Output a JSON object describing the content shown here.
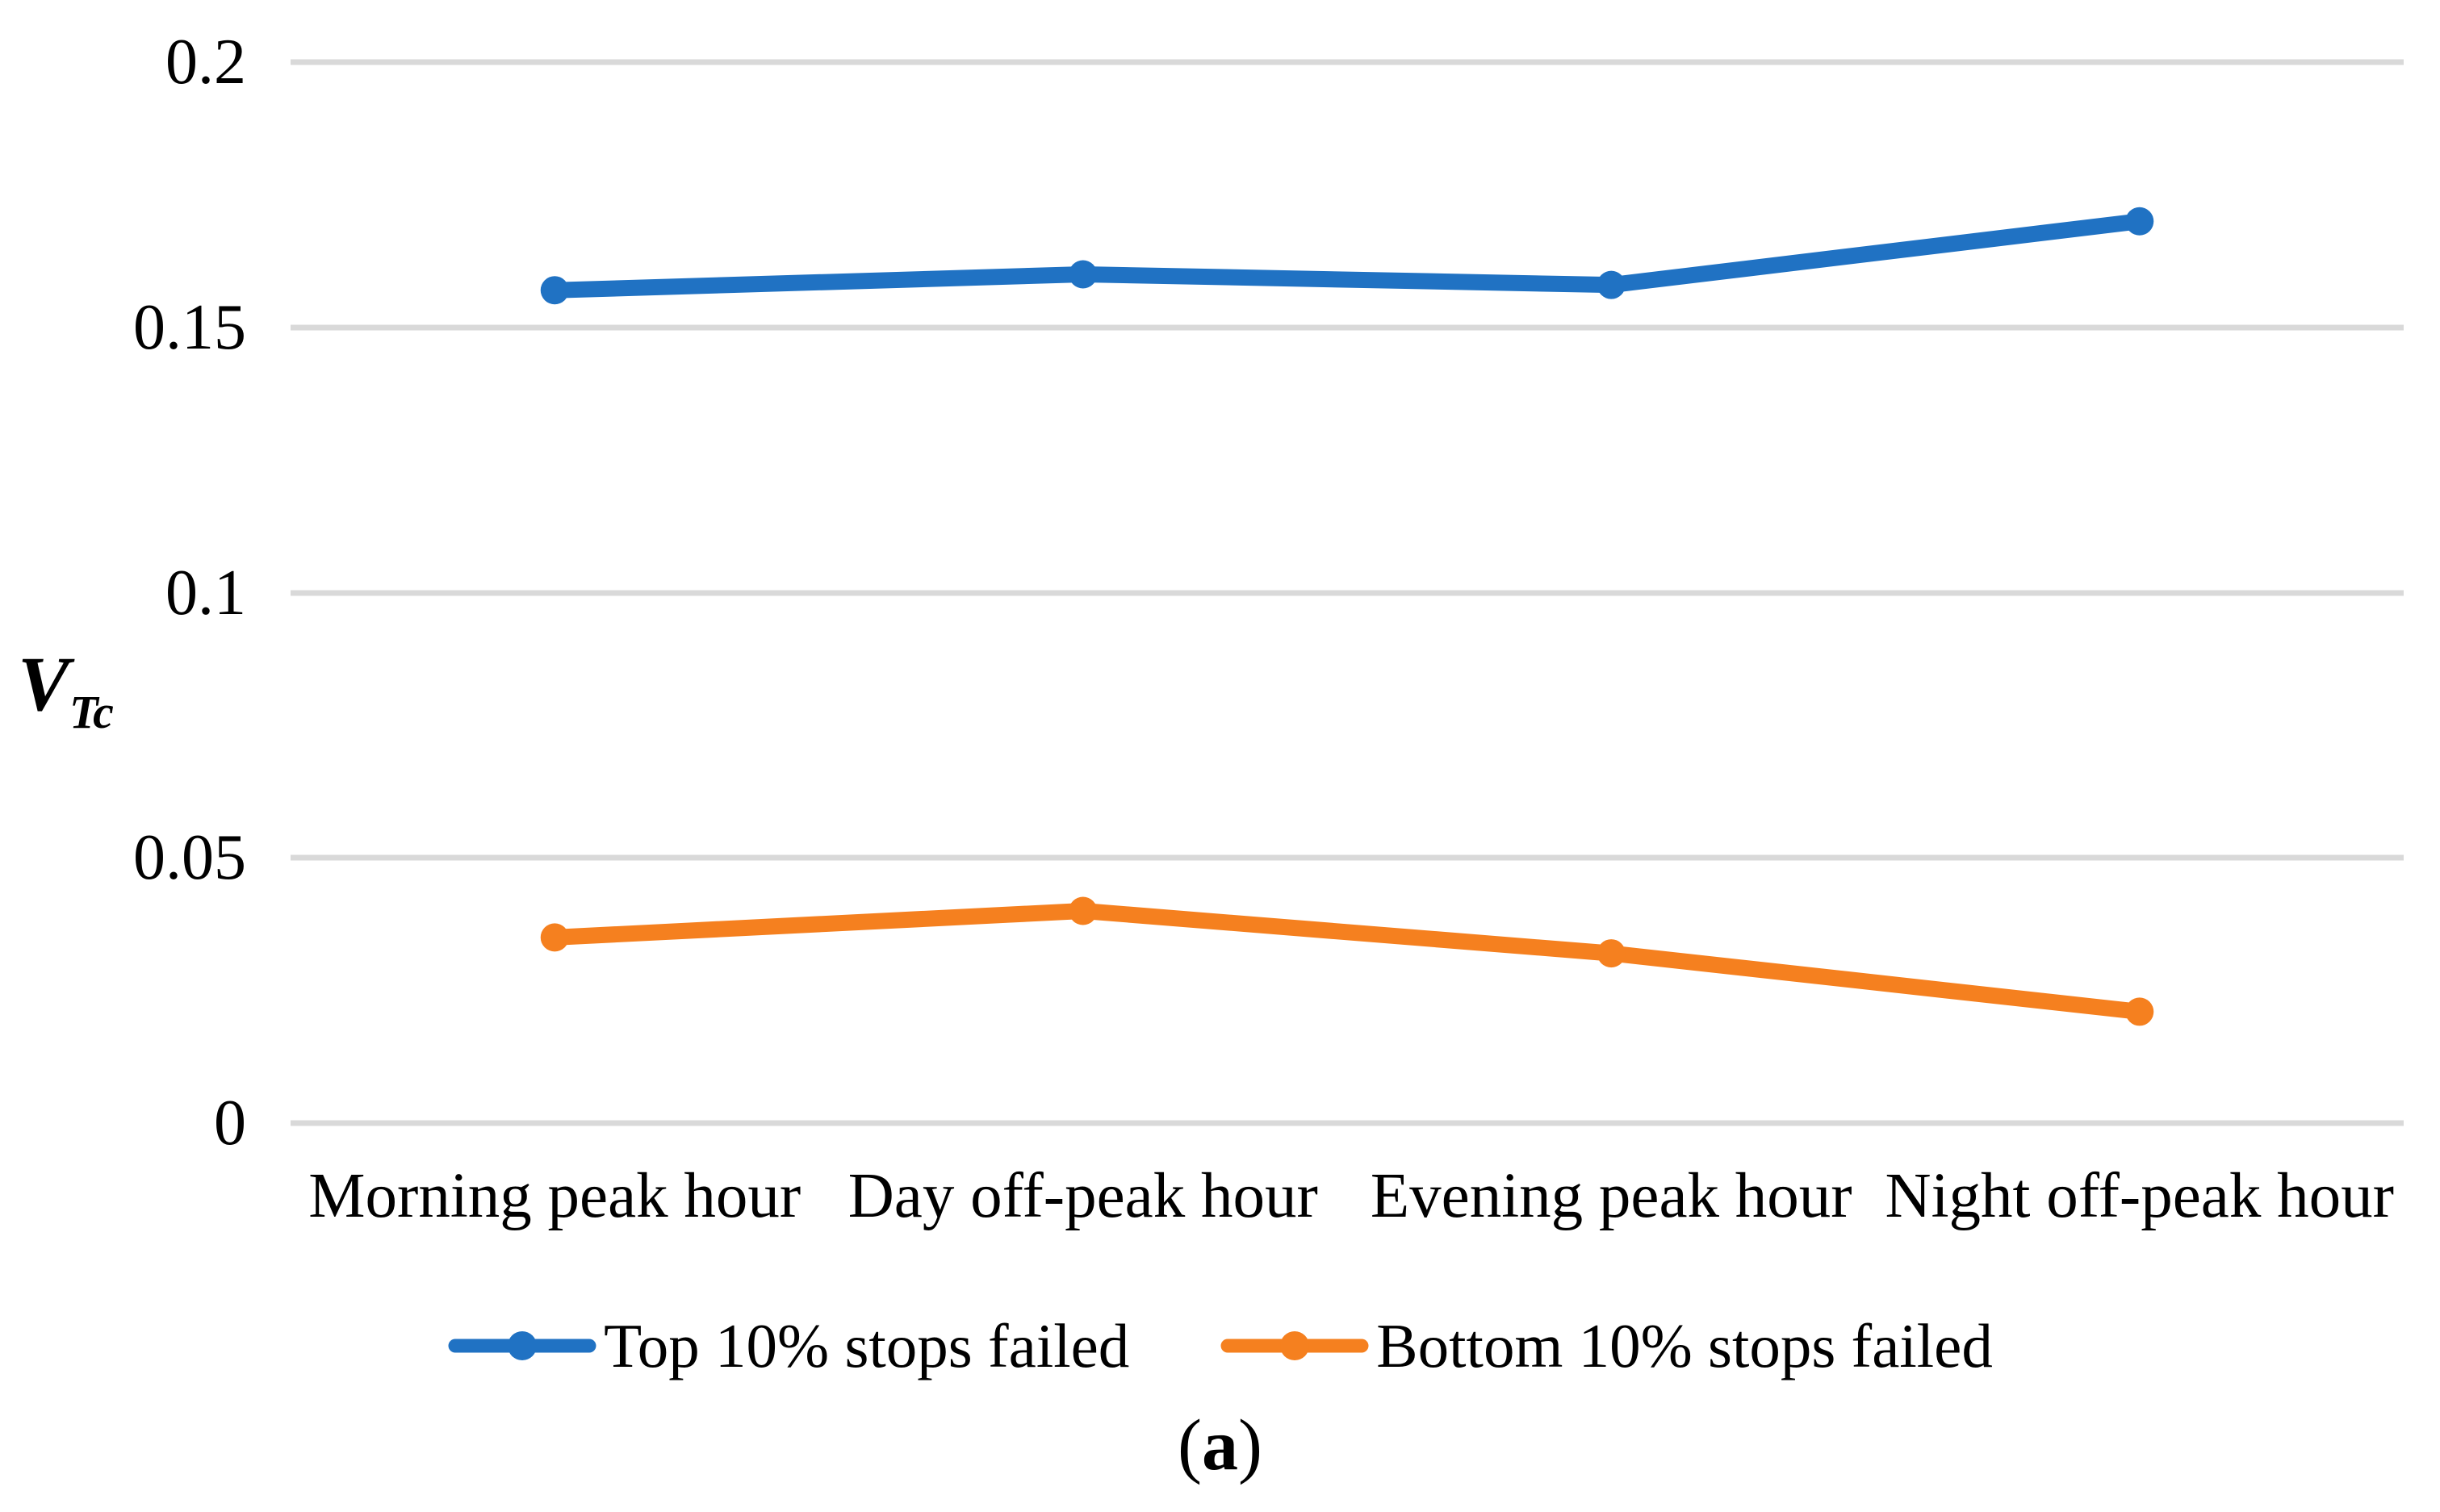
{
  "figure": {
    "caption_open": "(",
    "caption_letter": "a",
    "caption_close": ")"
  },
  "chart_data": {
    "type": "line",
    "title": "",
    "xlabel": "",
    "ylabel_main": "V",
    "ylabel_sub": "Tc",
    "categories": [
      "Morning peak hour",
      "Day off-peak hour",
      "Evening peak hour",
      "Night off-peak hour"
    ],
    "series": [
      {
        "name": "Top 10% stops failed",
        "color": "#2072C3",
        "values": [
          0.157,
          0.16,
          0.158,
          0.17
        ]
      },
      {
        "name": "Bottom 10% stops failed",
        "color": "#F5801F",
        "values": [
          0.035,
          0.04,
          0.032,
          0.021
        ]
      }
    ],
    "ylim": [
      0,
      0.2
    ],
    "yticks": [
      {
        "value": 0,
        "label": "0"
      },
      {
        "value": 0.05,
        "label": "0.05"
      },
      {
        "value": 0.1,
        "label": "0.1"
      },
      {
        "value": 0.15,
        "label": "0.15"
      },
      {
        "value": 0.2,
        "label": "0.2"
      }
    ],
    "grid": true,
    "gridline_color": "#D9D9D9",
    "legend_position": "bottom",
    "marker": "circle",
    "line_width": 20,
    "marker_radius": 17.5
  }
}
